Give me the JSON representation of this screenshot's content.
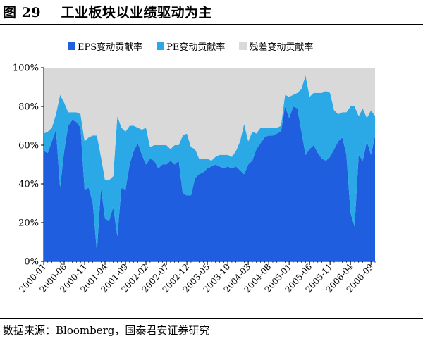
{
  "header": {
    "figure_label": "图 29",
    "title": "工业板块以业绩驱动为主"
  },
  "footer": {
    "source": "数据来源：Bloomberg，国泰君安证券研究"
  },
  "colors": {
    "eps": "#1f5fdf",
    "pe": "#2aa9e6",
    "residual": "#d9d9d9"
  },
  "chart_data": {
    "type": "area",
    "stacked": true,
    "title": "",
    "xlabel": "",
    "ylabel": "",
    "ylim": [
      0,
      100
    ],
    "y_unit": "%",
    "y_ticks": [
      "0%",
      "20%",
      "40%",
      "60%",
      "80%",
      "100%"
    ],
    "x_tick_labels": [
      "2000-01",
      "2000-06",
      "2000-11",
      "2001-04",
      "2001-09",
      "2002-02",
      "2002-07",
      "2002-12",
      "2003-05",
      "2003-10",
      "2004-03",
      "2004-08",
      "2005-01",
      "2005-06",
      "2005-11",
      "2006-04",
      "2006-09"
    ],
    "x_tick_spacing_months": 5,
    "legend_position": "top",
    "grid": false,
    "x": [
      "2000-01",
      "2000-02",
      "2000-03",
      "2000-04",
      "2000-05",
      "2000-06",
      "2000-07",
      "2000-08",
      "2000-09",
      "2000-10",
      "2000-11",
      "2000-12",
      "2001-01",
      "2001-02",
      "2001-03",
      "2001-04",
      "2001-05",
      "2001-06",
      "2001-07",
      "2001-08",
      "2001-09",
      "2001-10",
      "2001-11",
      "2001-12",
      "2002-01",
      "2002-02",
      "2002-03",
      "2002-04",
      "2002-05",
      "2002-06",
      "2002-07",
      "2002-08",
      "2002-09",
      "2002-10",
      "2002-11",
      "2002-12",
      "2003-01",
      "2003-02",
      "2003-03",
      "2003-04",
      "2003-05",
      "2003-06",
      "2003-07",
      "2003-08",
      "2003-09",
      "2003-10",
      "2003-11",
      "2003-12",
      "2004-01",
      "2004-02",
      "2004-03",
      "2004-04",
      "2004-05",
      "2004-06",
      "2004-07",
      "2004-08",
      "2004-09",
      "2004-10",
      "2004-11",
      "2004-12",
      "2005-01",
      "2005-02",
      "2005-03",
      "2005-04",
      "2005-05",
      "2005-06",
      "2005-07",
      "2005-08",
      "2005-09",
      "2005-10",
      "2005-11",
      "2005-12",
      "2006-01",
      "2006-02",
      "2006-03",
      "2006-04",
      "2006-05",
      "2006-06",
      "2006-07",
      "2006-08",
      "2006-09",
      "2006-10"
    ],
    "series": [
      {
        "name": "EPS变动贡献率",
        "values": [
          57,
          56,
          62,
          68,
          38,
          57,
          70,
          73,
          72,
          69,
          37,
          38,
          30,
          5,
          38,
          22,
          21,
          28,
          13,
          38,
          37,
          50,
          57,
          61,
          55,
          50,
          53,
          52,
          48,
          50,
          50,
          52,
          50,
          52,
          35,
          34,
          34,
          43,
          45,
          46,
          48,
          49,
          50,
          49,
          48,
          49,
          48,
          49,
          47,
          45,
          50,
          52,
          58,
          61,
          64,
          65,
          65,
          66,
          67,
          80,
          74,
          80,
          79,
          67,
          55,
          58,
          60,
          56,
          53,
          52,
          54,
          58,
          62,
          64,
          55,
          25,
          18,
          55,
          52,
          62,
          55,
          65
        ]
      },
      {
        "name": "PE变动贡献率",
        "values": [
          9,
          11,
          7,
          8,
          48,
          25,
          7,
          4,
          5,
          7,
          25,
          26,
          35,
          60,
          16,
          20,
          21,
          16,
          62,
          31,
          30,
          20,
          13,
          8,
          13,
          19,
          6,
          8,
          12,
          10,
          10,
          6,
          10,
          8,
          30,
          32,
          25,
          15,
          8,
          7,
          5,
          3,
          4,
          6,
          7,
          6,
          6,
          8,
          15,
          26,
          12,
          15,
          8,
          8,
          5,
          4,
          4,
          3,
          3,
          6,
          11,
          6,
          8,
          22,
          41,
          27,
          27,
          31,
          34,
          36,
          33,
          20,
          14,
          13,
          22,
          55,
          62,
          20,
          27,
          12,
          23,
          10
        ]
      },
      {
        "name": "残差变动贡献率",
        "values": [
          34,
          33,
          31,
          24,
          14,
          18,
          23,
          23,
          23,
          24,
          38,
          36,
          35,
          35,
          46,
          58,
          58,
          56,
          25,
          31,
          33,
          30,
          30,
          31,
          32,
          31,
          41,
          40,
          40,
          40,
          40,
          42,
          40,
          40,
          35,
          34,
          41,
          42,
          47,
          47,
          47,
          48,
          46,
          45,
          45,
          45,
          46,
          43,
          38,
          29,
          38,
          33,
          34,
          31,
          31,
          31,
          31,
          31,
          30,
          14,
          15,
          14,
          13,
          11,
          4,
          15,
          13,
          13,
          13,
          12,
          13,
          22,
          24,
          23,
          23,
          20,
          20,
          25,
          21,
          26,
          22,
          25
        ]
      }
    ]
  }
}
